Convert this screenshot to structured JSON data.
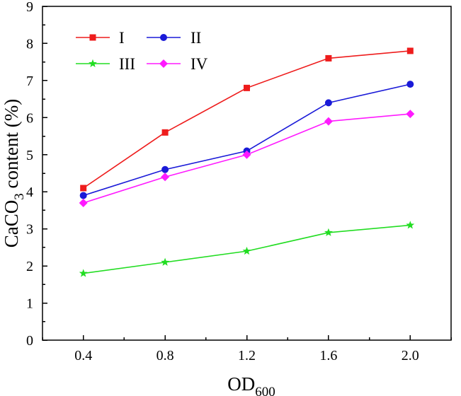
{
  "chart_data": {
    "type": "line",
    "title": "",
    "xlabel": {
      "main": "OD",
      "subscript": "600"
    },
    "ylabel": {
      "pre": "CaCO",
      "subscript": "3",
      "post": " content (%)"
    },
    "x": [
      0.4,
      0.8,
      1.2,
      1.6,
      2.0
    ],
    "x_tick_labels": [
      "0.4",
      "0.8",
      "1.2",
      "1.6",
      "2.0"
    ],
    "xlim": [
      0.2,
      2.2
    ],
    "ylim": [
      0,
      9
    ],
    "y_ticks": [
      0,
      1,
      2,
      3,
      4,
      5,
      6,
      7,
      8,
      9
    ],
    "y_tick_labels": [
      "0",
      "1",
      "2",
      "3",
      "4",
      "5",
      "6",
      "7",
      "8",
      "9"
    ],
    "grid": false,
    "legend": {
      "placement": "top-left"
    },
    "series": [
      {
        "name": "I",
        "values": [
          4.1,
          5.6,
          6.8,
          7.6,
          7.8
        ],
        "color": "#ee1c1c",
        "marker": "square"
      },
      {
        "name": "II",
        "values": [
          3.9,
          4.6,
          5.1,
          6.4,
          6.9
        ],
        "color": "#1a1ad8",
        "marker": "circle"
      },
      {
        "name": "III",
        "values": [
          1.8,
          2.1,
          2.4,
          2.9,
          3.1
        ],
        "color": "#22dd22",
        "marker": "star"
      },
      {
        "name": "IV",
        "values": [
          3.7,
          4.4,
          5.0,
          5.9,
          6.1
        ],
        "color": "#ff1aff",
        "marker": "diamond"
      }
    ]
  }
}
